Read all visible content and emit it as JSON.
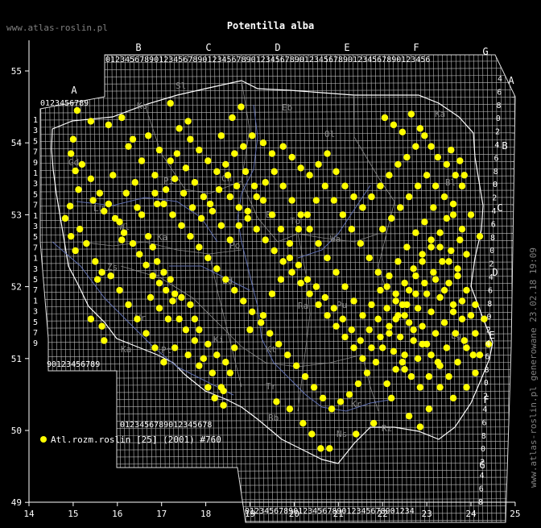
{
  "title": "Potentilla alba",
  "site": "www.atlas-roslin.pl",
  "generated": "www.atlas-roslin.pl generowane 23.02.18 19:09",
  "legend": {
    "label": "Atl.rozm.roslin [25] (2001) #760",
    "color": "#ffff00"
  },
  "colors": {
    "background": "#000000",
    "grid": "#bbbbbb",
    "border": "#dddddd",
    "river": "#5f6fb0",
    "region": "#888888",
    "dot": "#ffff00",
    "text": "#ffffff"
  },
  "axes": {
    "x_ticks": [
      "14",
      "15",
      "16",
      "17",
      "18",
      "19",
      "20",
      "21",
      "22",
      "23",
      "24",
      "25"
    ],
    "y_ticks": [
      "55",
      "54",
      "53",
      "52",
      "51",
      "50",
      "49"
    ]
  },
  "zones_top": [
    "A",
    "B",
    "C",
    "D",
    "E",
    "F",
    "G"
  ],
  "zones_right": [
    "A",
    "B",
    "C",
    "D",
    "E",
    "F",
    "G"
  ],
  "digit_strip_top": "0123456789012345678901234567890123456789012345678901234567890123456",
  "digit_strip_a": "0123456789",
  "digit_strip_left": [
    "1",
    "3",
    "5",
    "7",
    "9",
    "1",
    "3",
    "5",
    "7",
    "1",
    "3",
    "5",
    "7",
    "1",
    "3",
    "5",
    "7",
    "1",
    "3",
    "5",
    "7",
    "9"
  ],
  "digit_strip_right": [
    "4",
    "6",
    "8",
    "0",
    "2",
    "4",
    "6",
    "8",
    "0",
    "2",
    "4",
    "6",
    "8",
    "0",
    "2",
    "4",
    "6",
    "8",
    "0",
    "2",
    "4",
    "6",
    "8",
    "0",
    "2",
    "4",
    "6",
    "8",
    "0",
    "2",
    "4",
    "6",
    "8"
  ],
  "digit_strip_sw": "90123456789",
  "digit_strip_bottom_left": "0123456789012345678",
  "digit_strip_bottom_right": "01234567890123456789012345678901234",
  "region_labels": [
    "Sl",
    "Ko",
    "Eb",
    "Ol",
    "Ka",
    "Bl",
    "Pi",
    "Ch",
    "Gd",
    "Lu",
    "Bo",
    "To",
    "Wl",
    "Ka",
    "Wa",
    "Po",
    "Zs",
    "Le",
    "Ld",
    "Ra",
    "Pu",
    "Wr",
    "Ki",
    "Ka",
    "Pt",
    "Kt",
    "Tr",
    "Kr",
    "Bb",
    "Ns",
    "Rz",
    "Lg"
  ],
  "records": [
    [
      15.09,
      54.45
    ],
    [
      15.05,
      53.61
    ],
    [
      15.12,
      53.35
    ],
    [
      14.93,
      53.12
    ],
    [
      14.82,
      52.95
    ],
    [
      14.95,
      52.7
    ],
    [
      15.05,
      52.5
    ],
    [
      15.15,
      52.8
    ],
    [
      15.3,
      52.6
    ],
    [
      15.45,
      53.2
    ],
    [
      15.5,
      52.35
    ],
    [
      15.55,
      52.1
    ],
    [
      15.65,
      52.2
    ],
    [
      15.7,
      53.05
    ],
    [
      16.05,
      52.9
    ],
    [
      16.1,
      52.65
    ],
    [
      16.2,
      53.3
    ],
    [
      16.4,
      53.45
    ],
    [
      16.45,
      53.1
    ],
    [
      16.55,
      53.0
    ],
    [
      16.7,
      52.7
    ],
    [
      16.8,
      52.55
    ],
    [
      16.9,
      52.35
    ],
    [
      17.05,
      52.2
    ],
    [
      17.2,
      52.1
    ],
    [
      17.3,
      51.9
    ],
    [
      17.45,
      51.85
    ],
    [
      17.65,
      51.75
    ],
    [
      17.75,
      51.55
    ],
    [
      17.85,
      51.4
    ],
    [
      18.05,
      51.2
    ],
    [
      18.25,
      51.05
    ],
    [
      18.45,
      50.95
    ],
    [
      18.55,
      50.8
    ],
    [
      18.4,
      50.55
    ],
    [
      18.2,
      50.45
    ],
    [
      18.05,
      50.6
    ],
    [
      17.95,
      51.0
    ],
    [
      17.75,
      51.25
    ],
    [
      17.55,
      51.4
    ],
    [
      17.4,
      51.55
    ],
    [
      17.25,
      51.8
    ],
    [
      17.1,
      51.95
    ],
    [
      16.95,
      52.05
    ],
    [
      16.8,
      52.15
    ],
    [
      16.65,
      52.3
    ],
    [
      16.5,
      52.45
    ],
    [
      16.35,
      52.6
    ],
    [
      16.15,
      52.75
    ],
    [
      15.95,
      52.95
    ],
    [
      15.8,
      53.15
    ],
    [
      15.6,
      53.3
    ],
    [
      15.4,
      53.5
    ],
    [
      15.2,
      53.7
    ],
    [
      14.95,
      53.85
    ],
    [
      15.0,
      54.05
    ],
    [
      15.4,
      54.3
    ],
    [
      15.8,
      54.25
    ],
    [
      16.1,
      54.35
    ],
    [
      16.35,
      54.05
    ],
    [
      16.7,
      54.1
    ],
    [
      16.95,
      53.9
    ],
    [
      17.2,
      53.75
    ],
    [
      17.4,
      54.2
    ],
    [
      17.65,
      54.05
    ],
    [
      17.85,
      53.9
    ],
    [
      18.05,
      53.75
    ],
    [
      18.25,
      53.6
    ],
    [
      18.45,
      53.7
    ],
    [
      18.65,
      53.85
    ],
    [
      18.85,
      53.95
    ],
    [
      19.05,
      54.1
    ],
    [
      19.3,
      54.0
    ],
    [
      19.5,
      53.85
    ],
    [
      19.75,
      53.95
    ],
    [
      19.95,
      53.8
    ],
    [
      20.15,
      53.65
    ],
    [
      20.35,
      53.55
    ],
    [
      20.55,
      53.7
    ],
    [
      20.75,
      53.85
    ],
    [
      20.95,
      53.6
    ],
    [
      21.15,
      53.4
    ],
    [
      21.35,
      53.25
    ],
    [
      21.55,
      53.1
    ],
    [
      21.75,
      53.25
    ],
    [
      21.95,
      53.4
    ],
    [
      22.15,
      53.55
    ],
    [
      22.35,
      53.7
    ],
    [
      22.55,
      53.8
    ],
    [
      22.75,
      53.95
    ],
    [
      22.95,
      54.1
    ],
    [
      23.1,
      53.95
    ],
    [
      23.25,
      53.8
    ],
    [
      23.45,
      53.7
    ],
    [
      23.65,
      53.55
    ],
    [
      23.8,
      53.4
    ],
    [
      23.6,
      53.15
    ],
    [
      23.45,
      52.95
    ],
    [
      23.3,
      52.75
    ],
    [
      23.1,
      52.55
    ],
    [
      22.9,
      52.35
    ],
    [
      22.75,
      52.15
    ],
    [
      22.6,
      51.95
    ],
    [
      22.45,
      51.75
    ],
    [
      22.3,
      51.55
    ],
    [
      22.15,
      51.35
    ],
    [
      22.0,
      51.15
    ],
    [
      21.85,
      50.95
    ],
    [
      21.65,
      50.8
    ],
    [
      21.45,
      50.65
    ],
    [
      21.25,
      50.5
    ],
    [
      21.05,
      50.4
    ],
    [
      20.85,
      50.3
    ],
    [
      20.65,
      50.45
    ],
    [
      20.45,
      50.6
    ],
    [
      20.25,
      50.75
    ],
    [
      20.05,
      50.9
    ],
    [
      19.85,
      51.05
    ],
    [
      19.65,
      51.2
    ],
    [
      19.45,
      51.35
    ],
    [
      19.25,
      51.5
    ],
    [
      19.05,
      51.65
    ],
    [
      18.85,
      51.8
    ],
    [
      18.65,
      51.95
    ],
    [
      18.45,
      52.1
    ],
    [
      18.25,
      52.25
    ],
    [
      18.05,
      52.4
    ],
    [
      17.85,
      52.55
    ],
    [
      17.65,
      52.7
    ],
    [
      17.45,
      52.85
    ],
    [
      17.25,
      53.0
    ],
    [
      17.05,
      53.15
    ],
    [
      16.85,
      53.3
    ],
    [
      18.6,
      54.35
    ],
    [
      18.35,
      54.1
    ],
    [
      18.8,
      54.5
    ],
    [
      17.2,
      54.55
    ],
    [
      17.6,
      54.3
    ],
    [
      16.85,
      53.55
    ],
    [
      16.55,
      53.75
    ],
    [
      15.9,
      53.55
    ],
    [
      16.25,
      53.95
    ],
    [
      18.55,
      53.25
    ],
    [
      18.75,
      53.1
    ],
    [
      18.95,
      52.95
    ],
    [
      19.15,
      52.8
    ],
    [
      19.35,
      52.65
    ],
    [
      19.55,
      52.5
    ],
    [
      19.75,
      52.35
    ],
    [
      19.95,
      52.2
    ],
    [
      20.15,
      52.05
    ],
    [
      20.35,
      51.9
    ],
    [
      20.55,
      51.75
    ],
    [
      20.75,
      51.6
    ],
    [
      20.95,
      51.45
    ],
    [
      21.15,
      51.3
    ],
    [
      21.35,
      51.15
    ],
    [
      21.55,
      51.0
    ],
    [
      21.75,
      51.15
    ],
    [
      21.95,
      51.3
    ],
    [
      22.15,
      51.45
    ],
    [
      22.35,
      51.6
    ],
    [
      22.55,
      51.75
    ],
    [
      22.75,
      51.9
    ],
    [
      22.95,
      52.05
    ],
    [
      23.15,
      52.2
    ],
    [
      23.35,
      52.35
    ],
    [
      23.55,
      52.5
    ],
    [
      23.75,
      52.65
    ],
    [
      23.9,
      52.45
    ],
    [
      23.7,
      52.25
    ],
    [
      23.5,
      52.05
    ],
    [
      23.3,
      51.85
    ],
    [
      23.1,
      51.65
    ],
    [
      22.9,
      51.45
    ],
    [
      22.7,
      51.25
    ],
    [
      22.5,
      51.05
    ],
    [
      22.3,
      50.85
    ],
    [
      22.1,
      50.65
    ],
    [
      22.5,
      50.85
    ],
    [
      22.8,
      51.0
    ],
    [
      23.0,
      51.2
    ],
    [
      23.2,
      51.35
    ],
    [
      23.4,
      51.5
    ],
    [
      23.6,
      51.65
    ],
    [
      23.8,
      51.8
    ],
    [
      24.0,
      51.6
    ],
    [
      24.1,
      51.35
    ],
    [
      23.9,
      51.15
    ],
    [
      23.7,
      50.95
    ],
    [
      23.5,
      50.75
    ],
    [
      23.3,
      50.9
    ],
    [
      23.1,
      51.05
    ],
    [
      22.9,
      51.2
    ],
    [
      22.7,
      51.4
    ],
    [
      22.5,
      51.6
    ],
    [
      22.3,
      51.8
    ],
    [
      22.1,
      52.0
    ],
    [
      21.9,
      52.2
    ],
    [
      21.7,
      52.4
    ],
    [
      21.5,
      52.6
    ],
    [
      21.3,
      52.8
    ],
    [
      21.1,
      53.0
    ],
    [
      20.9,
      53.2
    ],
    [
      20.7,
      53.4
    ],
    [
      20.5,
      53.2
    ],
    [
      20.3,
      53.0
    ],
    [
      20.1,
      52.8
    ],
    [
      19.9,
      52.6
    ],
    [
      19.7,
      52.8
    ],
    [
      19.5,
      53.0
    ],
    [
      19.3,
      53.2
    ],
    [
      19.1,
      53.4
    ],
    [
      18.9,
      53.6
    ],
    [
      18.7,
      53.4
    ],
    [
      18.5,
      53.55
    ],
    [
      18.3,
      53.35
    ],
    [
      18.1,
      53.15
    ],
    [
      17.9,
      52.95
    ],
    [
      17.7,
      53.1
    ],
    [
      17.5,
      53.3
    ],
    [
      17.3,
      53.5
    ],
    [
      17.1,
      53.35
    ],
    [
      16.9,
      53.15
    ],
    [
      22.0,
      52.8
    ],
    [
      22.2,
      52.95
    ],
    [
      22.4,
      53.1
    ],
    [
      22.6,
      53.25
    ],
    [
      22.8,
      53.4
    ],
    [
      23.0,
      53.55
    ],
    [
      23.2,
      53.4
    ],
    [
      23.4,
      53.25
    ],
    [
      23.6,
      53.0
    ],
    [
      23.8,
      52.8
    ],
    [
      24.0,
      53.0
    ],
    [
      24.2,
      52.7
    ],
    [
      24.1,
      50.8
    ],
    [
      23.9,
      50.6
    ],
    [
      23.6,
      50.45
    ],
    [
      23.3,
      50.6
    ],
    [
      23.05,
      50.3
    ],
    [
      22.85,
      50.05
    ],
    [
      22.6,
      50.2
    ],
    [
      22.2,
      50.45
    ],
    [
      21.8,
      50.1
    ],
    [
      21.4,
      49.95
    ],
    [
      20.8,
      49.75
    ],
    [
      20.6,
      49.75
    ],
    [
      20.4,
      49.95
    ],
    [
      20.2,
      50.1
    ],
    [
      19.9,
      50.3
    ],
    [
      19.6,
      50.4
    ],
    [
      18.35,
      50.6
    ],
    [
      18.15,
      50.8
    ],
    [
      18.4,
      50.35
    ],
    [
      17.85,
      50.9
    ],
    [
      17.6,
      51.05
    ],
    [
      17.3,
      51.15
    ],
    [
      17.05,
      50.95
    ],
    [
      16.85,
      51.15
    ],
    [
      16.65,
      51.35
    ],
    [
      16.45,
      51.55
    ],
    [
      16.25,
      51.75
    ],
    [
      16.05,
      51.95
    ],
    [
      15.85,
      52.15
    ],
    [
      15.65,
      51.45
    ],
    [
      15.4,
      51.55
    ],
    [
      15.7,
      51.25
    ],
    [
      16.75,
      51.85
    ],
    [
      16.95,
      51.7
    ],
    [
      17.15,
      51.55
    ],
    [
      18.65,
      51.15
    ],
    [
      19.0,
      51.4
    ],
    [
      19.3,
      51.6
    ],
    [
      19.5,
      51.9
    ],
    [
      19.7,
      52.1
    ],
    [
      19.9,
      52.4
    ],
    [
      20.1,
      52.3
    ],
    [
      20.3,
      52.1
    ],
    [
      20.5,
      52.0
    ],
    [
      20.7,
      51.85
    ],
    [
      20.9,
      51.7
    ],
    [
      21.1,
      51.55
    ],
    [
      21.3,
      51.4
    ],
    [
      21.5,
      51.25
    ],
    [
      21.7,
      51.4
    ],
    [
      21.9,
      51.55
    ],
    [
      22.1,
      51.7
    ],
    [
      22.3,
      51.9
    ],
    [
      22.5,
      52.05
    ],
    [
      22.7,
      52.25
    ],
    [
      22.9,
      52.45
    ],
    [
      23.1,
      52.65
    ],
    [
      23.3,
      52.55
    ],
    [
      23.5,
      52.35
    ],
    [
      23.7,
      52.15
    ],
    [
      23.9,
      51.95
    ],
    [
      24.1,
      51.75
    ],
    [
      24.3,
      51.55
    ],
    [
      24.4,
      51.2
    ],
    [
      24.2,
      51.05
    ],
    [
      22.4,
      51.3
    ],
    [
      22.6,
      51.5
    ],
    [
      22.8,
      51.7
    ],
    [
      23.0,
      51.9
    ],
    [
      23.2,
      52.1
    ],
    [
      23.4,
      51.95
    ],
    [
      23.6,
      51.75
    ],
    [
      23.8,
      51.55
    ],
    [
      22.25,
      51.1
    ],
    [
      22.45,
      50.95
    ],
    [
      22.65,
      50.75
    ],
    [
      22.85,
      50.6
    ],
    [
      23.05,
      50.75
    ],
    [
      23.25,
      50.95
    ],
    [
      23.45,
      51.15
    ],
    [
      23.65,
      51.35
    ],
    [
      23.85,
      51.25
    ],
    [
      24.05,
      51.05
    ],
    [
      22.55,
      52.55
    ],
    [
      22.75,
      52.75
    ],
    [
      22.95,
      52.9
    ],
    [
      23.15,
      53.1
    ],
    [
      22.35,
      52.35
    ],
    [
      22.15,
      52.15
    ],
    [
      21.95,
      51.95
    ],
    [
      21.75,
      51.75
    ],
    [
      21.55,
      51.6
    ],
    [
      21.35,
      51.8
    ],
    [
      21.15,
      52.0
    ],
    [
      20.95,
      52.2
    ],
    [
      20.75,
      52.4
    ],
    [
      20.55,
      52.6
    ],
    [
      20.35,
      52.8
    ],
    [
      20.15,
      53.0
    ],
    [
      19.95,
      53.2
    ],
    [
      19.75,
      53.4
    ],
    [
      19.55,
      53.6
    ],
    [
      19.35,
      53.45
    ],
    [
      19.15,
      53.25
    ],
    [
      18.95,
      53.05
    ],
    [
      18.75,
      52.85
    ],
    [
      18.55,
      52.65
    ],
    [
      18.35,
      52.85
    ],
    [
      18.15,
      53.05
    ],
    [
      17.95,
      53.25
    ],
    [
      17.75,
      53.45
    ],
    [
      17.55,
      53.65
    ],
    [
      17.35,
      53.85
    ],
    [
      23.55,
      53.9
    ],
    [
      23.75,
      53.75
    ],
    [
      23.85,
      53.55
    ],
    [
      22.05,
      54.35
    ],
    [
      22.25,
      54.25
    ],
    [
      22.45,
      54.15
    ],
    [
      22.65,
      54.4
    ],
    [
      22.85,
      54.2
    ]
  ]
}
